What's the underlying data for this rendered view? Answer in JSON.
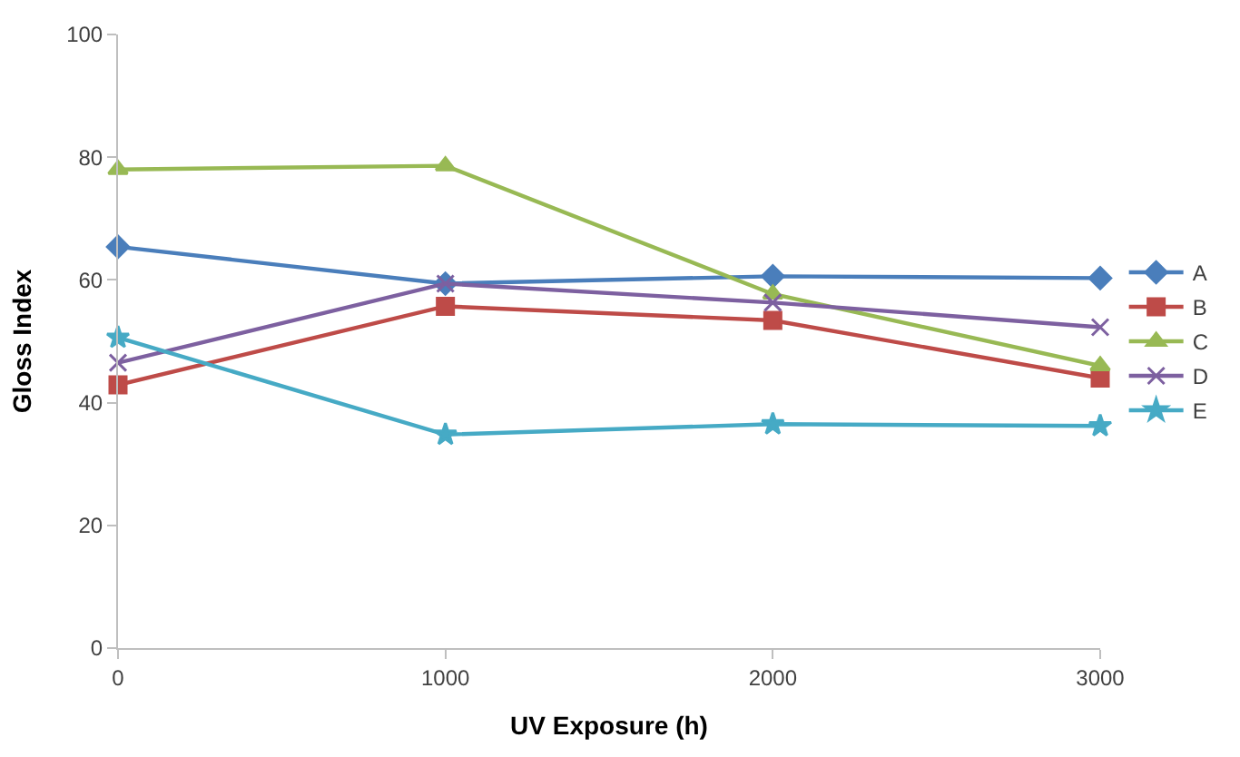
{
  "chart_data": {
    "type": "line",
    "xlabel": "UV Exposure (h)",
    "ylabel": "Gloss Index",
    "x": [
      0,
      1000,
      2000,
      3000
    ],
    "xlim": [
      0,
      3000
    ],
    "xticks": [
      0,
      1000,
      2000,
      3000
    ],
    "ylim": [
      0,
      100
    ],
    "yticks": [
      0,
      20,
      40,
      60,
      80,
      100
    ],
    "grid": false,
    "legend": "right",
    "line_style": "solid",
    "series": [
      {
        "name": "A",
        "color": "#4a7ebb",
        "marker": "diamond",
        "values": [
          65.4,
          59.4,
          60.6,
          60.3
        ]
      },
      {
        "name": "B",
        "color": "#be4b48",
        "marker": "square",
        "values": [
          42.9,
          55.7,
          53.4,
          44
        ]
      },
      {
        "name": "C",
        "color": "#98b954",
        "marker": "triangle",
        "values": [
          78,
          78.6,
          57.7,
          46
        ]
      },
      {
        "name": "D",
        "color": "#7d60a0",
        "marker": "cross",
        "values": [
          46.5,
          59.4,
          56.3,
          52.3
        ]
      },
      {
        "name": "E",
        "color": "#46aac5",
        "marker": "star",
        "values": [
          50.6,
          34.8,
          36.5,
          36.2
        ]
      }
    ]
  }
}
